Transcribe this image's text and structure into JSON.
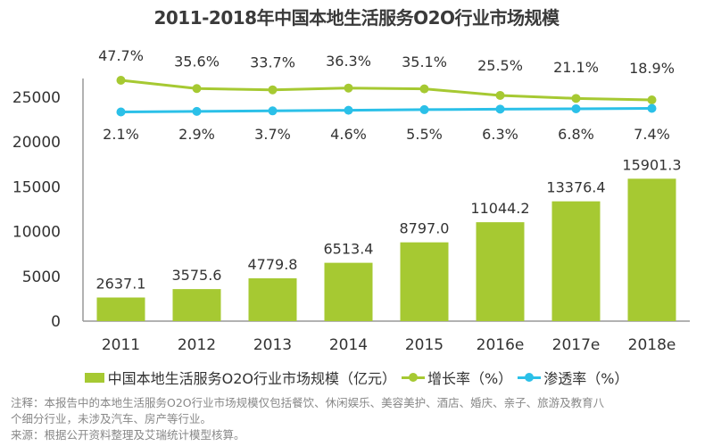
{
  "colors": {
    "bar": "#a6c932",
    "growth": "#a6c932",
    "penetration": "#2bc0e8",
    "axis": "#999999",
    "text": "#333333"
  },
  "chart_data": {
    "type": "bar",
    "title": "2011-2018年中国本地生活服务O2O行业市场规模",
    "categories": [
      "2011",
      "2012",
      "2013",
      "2014",
      "2015",
      "2016e",
      "2017e",
      "2018e"
    ],
    "ylim": [
      0,
      27000
    ],
    "yticks": [
      "0",
      "5000",
      "10000",
      "15000",
      "20000",
      "25000"
    ],
    "ytick_values": [
      0,
      5000,
      10000,
      15000,
      20000,
      25000
    ],
    "grid": false,
    "legend_position": "bottom",
    "series": [
      {
        "name": "中国本地生活服务O2O行业市场规模（亿元）",
        "type": "bar",
        "values": [
          2637.1,
          3575.6,
          4779.8,
          6513.4,
          8797.0,
          11044.2,
          13376.4,
          15901.3
        ],
        "labels": [
          "2637.1",
          "3575.6",
          "4779.8",
          "6513.4",
          "8797.0",
          "11044.2",
          "13376.4",
          "15901.3"
        ]
      },
      {
        "name": "增长率（%）",
        "type": "line",
        "values": [
          47.7,
          35.6,
          33.7,
          36.3,
          35.1,
          25.5,
          21.1,
          18.9
        ],
        "labels": [
          "47.7%",
          "35.6%",
          "33.7%",
          "36.3%",
          "35.1%",
          "25.5%",
          "21.1%",
          "18.9%"
        ]
      },
      {
        "name": "渗透率（%）",
        "type": "line",
        "values": [
          2.1,
          2.9,
          3.7,
          4.6,
          5.5,
          6.3,
          6.8,
          7.4
        ],
        "labels": [
          "2.1%",
          "2.9%",
          "3.7%",
          "4.6%",
          "5.5%",
          "6.3%",
          "6.8%",
          "7.4%"
        ]
      }
    ]
  },
  "legend": {
    "bar": "中国本地生活服务O2O行业市场规模（亿元）",
    "growth": "增长率（%）",
    "penetration": "渗透率（%）"
  },
  "notes": {
    "line1": "注释：本报告中的本地生活服务O2O行业市场规模仅包括餐饮、休闲娱乐、美容美护、酒店、婚庆、亲子、旅游及教育八",
    "line2": "个细分行业，未涉及汽车、房产等行业。",
    "source": "来源：根据公开资料整理及艾瑞统计模型核算。"
  }
}
